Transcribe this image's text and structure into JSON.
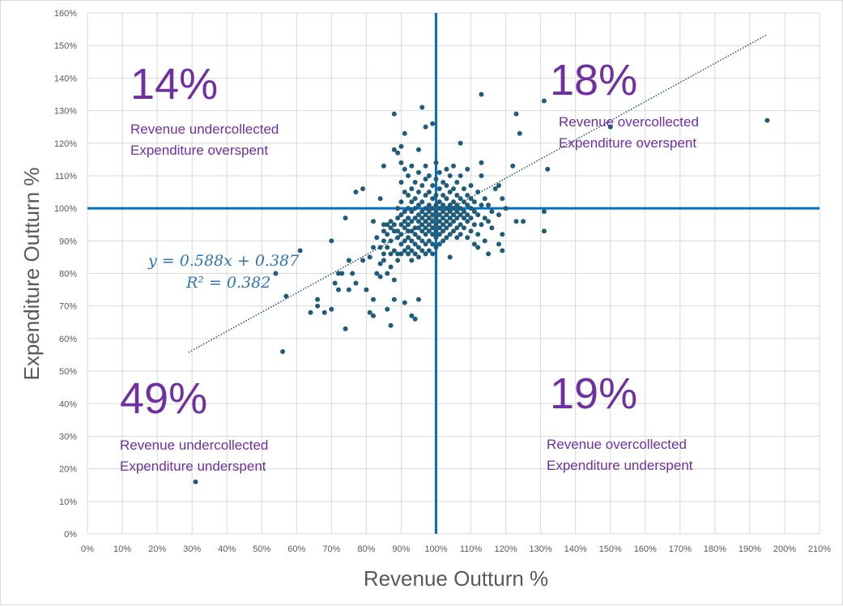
{
  "chart_data": {
    "type": "scatter",
    "xlabel": "Revenue Outturn %",
    "ylabel": "Expenditure Outturn %",
    "xlim": [
      0,
      210
    ],
    "ylim": [
      0,
      160
    ],
    "x_ticks": [
      "0%",
      "10%",
      "20%",
      "30%",
      "40%",
      "50%",
      "60%",
      "70%",
      "80%",
      "90%",
      "100%",
      "110%",
      "120%",
      "130%",
      "140%",
      "150%",
      "160%",
      "170%",
      "180%",
      "190%",
      "200%",
      "210%"
    ],
    "y_ticks": [
      "0%",
      "10%",
      "20%",
      "30%",
      "40%",
      "50%",
      "60%",
      "70%",
      "80%",
      "90%",
      "100%",
      "110%",
      "120%",
      "130%",
      "140%",
      "150%",
      "160%"
    ],
    "grid": true,
    "reference_lines": {
      "x": 100,
      "y": 100,
      "color": "#0070c0"
    },
    "trendline": {
      "slope": 0.588,
      "intercept": 0.387,
      "x_range": [
        29,
        195
      ],
      "color": "#1f4e79"
    },
    "equation_line1": "y = 0.588x + 0.387",
    "equation_line2": "R² = 0.382",
    "quadrants": [
      {
        "percent": "14%",
        "line1": "Revenue undercollected",
        "line2": "Expenditure overspent"
      },
      {
        "percent": "18%",
        "line1": "Revenue overcollected",
        "line2": "Expenditure overspent"
      },
      {
        "percent": "49%",
        "line1": "Revenue undercollected",
        "line2": "Expenditure underspent"
      },
      {
        "percent": "19%",
        "line1": "Revenue overcollected",
        "line2": "Expenditure underspent"
      }
    ],
    "point_color": "#1f5c7a",
    "points": [
      [
        31,
        16
      ],
      [
        56,
        56
      ],
      [
        57,
        73
      ],
      [
        54,
        80
      ],
      [
        61,
        87
      ],
      [
        64,
        68
      ],
      [
        66,
        70
      ],
      [
        66,
        72
      ],
      [
        68,
        68
      ],
      [
        70,
        69
      ],
      [
        70,
        90
      ],
      [
        71,
        77
      ],
      [
        72,
        80
      ],
      [
        72,
        75
      ],
      [
        73,
        80
      ],
      [
        74,
        63
      ],
      [
        74,
        97
      ],
      [
        75,
        75
      ],
      [
        75,
        84
      ],
      [
        76,
        80
      ],
      [
        77,
        77
      ],
      [
        77,
        105
      ],
      [
        79,
        84
      ],
      [
        79,
        106
      ],
      [
        80,
        75
      ],
      [
        81,
        68
      ],
      [
        81,
        85
      ],
      [
        82,
        67
      ],
      [
        82,
        72
      ],
      [
        82,
        88
      ],
      [
        82,
        96
      ],
      [
        83,
        80
      ],
      [
        83,
        91
      ],
      [
        84,
        79
      ],
      [
        84,
        83
      ],
      [
        84,
        88
      ],
      [
        84,
        103
      ],
      [
        85,
        84
      ],
      [
        85,
        86
      ],
      [
        85,
        90
      ],
      [
        85,
        93
      ],
      [
        85,
        95
      ],
      [
        85,
        113
      ],
      [
        86,
        69
      ],
      [
        86,
        80
      ],
      [
        86,
        88
      ],
      [
        86,
        92
      ],
      [
        86,
        95
      ],
      [
        87,
        64
      ],
      [
        87,
        82
      ],
      [
        87,
        86
      ],
      [
        87,
        90
      ],
      [
        87,
        94
      ],
      [
        87,
        96
      ],
      [
        88,
        72
      ],
      [
        88,
        78
      ],
      [
        88,
        87
      ],
      [
        88,
        93
      ],
      [
        88,
        95
      ],
      [
        88,
        118
      ],
      [
        88,
        129
      ],
      [
        89,
        84
      ],
      [
        89,
        86
      ],
      [
        89,
        91
      ],
      [
        89,
        93
      ],
      [
        89,
        97
      ],
      [
        89,
        100
      ],
      [
        89,
        117
      ],
      [
        90,
        86
      ],
      [
        90,
        89
      ],
      [
        90,
        92
      ],
      [
        90,
        95
      ],
      [
        90,
        98
      ],
      [
        90,
        102
      ],
      [
        90,
        108
      ],
      [
        90,
        114
      ],
      [
        90,
        119
      ],
      [
        91,
        71
      ],
      [
        91,
        87
      ],
      [
        91,
        90
      ],
      [
        91,
        94
      ],
      [
        91,
        96
      ],
      [
        91,
        99
      ],
      [
        91,
        105
      ],
      [
        91,
        112
      ],
      [
        91,
        123
      ],
      [
        92,
        86
      ],
      [
        92,
        88
      ],
      [
        92,
        91
      ],
      [
        92,
        93
      ],
      [
        92,
        95
      ],
      [
        92,
        97
      ],
      [
        92,
        100
      ],
      [
        92,
        104
      ],
      [
        92,
        110
      ],
      [
        93,
        67
      ],
      [
        93,
        84
      ],
      [
        93,
        87
      ],
      [
        93,
        90
      ],
      [
        93,
        93
      ],
      [
        93,
        96
      ],
      [
        93,
        99
      ],
      [
        93,
        102
      ],
      [
        93,
        106
      ],
      [
        93,
        113
      ],
      [
        94,
        66
      ],
      [
        94,
        86
      ],
      [
        94,
        89
      ],
      [
        94,
        92
      ],
      [
        94,
        94
      ],
      [
        94,
        97
      ],
      [
        94,
        100
      ],
      [
        94,
        103
      ],
      [
        94,
        108
      ],
      [
        95,
        72
      ],
      [
        95,
        85
      ],
      [
        95,
        88
      ],
      [
        95,
        91
      ],
      [
        95,
        94
      ],
      [
        95,
        96
      ],
      [
        95,
        98
      ],
      [
        95,
        101
      ],
      [
        95,
        105
      ],
      [
        95,
        111
      ],
      [
        95,
        118
      ],
      [
        96,
        87
      ],
      [
        96,
        90
      ],
      [
        96,
        93
      ],
      [
        96,
        95
      ],
      [
        96,
        97
      ],
      [
        96,
        99
      ],
      [
        96,
        102
      ],
      [
        96,
        107
      ],
      [
        96,
        131
      ],
      [
        97,
        86
      ],
      [
        97,
        89
      ],
      [
        97,
        92
      ],
      [
        97,
        94
      ],
      [
        97,
        96
      ],
      [
        97,
        98
      ],
      [
        97,
        100
      ],
      [
        97,
        104
      ],
      [
        97,
        109
      ],
      [
        97,
        113
      ],
      [
        97,
        125
      ],
      [
        98,
        87
      ],
      [
        98,
        90
      ],
      [
        98,
        93
      ],
      [
        98,
        95
      ],
      [
        98,
        97
      ],
      [
        98,
        99
      ],
      [
        98,
        101
      ],
      [
        98,
        105
      ],
      [
        98,
        110
      ],
      [
        99,
        86
      ],
      [
        99,
        89
      ],
      [
        99,
        92
      ],
      [
        99,
        94
      ],
      [
        99,
        96
      ],
      [
        99,
        98
      ],
      [
        99,
        100
      ],
      [
        99,
        103
      ],
      [
        99,
        107
      ],
      [
        99,
        126
      ],
      [
        100,
        88
      ],
      [
        100,
        91
      ],
      [
        100,
        93
      ],
      [
        100,
        95
      ],
      [
        100,
        97
      ],
      [
        100,
        99
      ],
      [
        100,
        101
      ],
      [
        100,
        104
      ],
      [
        100,
        109
      ],
      [
        100,
        114
      ],
      [
        101,
        89
      ],
      [
        101,
        92
      ],
      [
        101,
        94
      ],
      [
        101,
        96
      ],
      [
        101,
        98
      ],
      [
        101,
        100
      ],
      [
        101,
        102
      ],
      [
        101,
        106
      ],
      [
        101,
        111
      ],
      [
        102,
        90
      ],
      [
        102,
        93
      ],
      [
        102,
        95
      ],
      [
        102,
        97
      ],
      [
        102,
        99
      ],
      [
        102,
        101
      ],
      [
        102,
        104
      ],
      [
        102,
        108
      ],
      [
        103,
        91
      ],
      [
        103,
        94
      ],
      [
        103,
        96
      ],
      [
        103,
        98
      ],
      [
        103,
        100
      ],
      [
        103,
        103
      ],
      [
        103,
        107
      ],
      [
        103,
        112
      ],
      [
        104,
        85
      ],
      [
        104,
        92
      ],
      [
        104,
        95
      ],
      [
        104,
        97
      ],
      [
        104,
        99
      ],
      [
        104,
        101
      ],
      [
        104,
        105
      ],
      [
        104,
        110
      ],
      [
        105,
        93
      ],
      [
        105,
        96
      ],
      [
        105,
        98
      ],
      [
        105,
        100
      ],
      [
        105,
        102
      ],
      [
        105,
        106
      ],
      [
        105,
        113
      ],
      [
        106,
        91
      ],
      [
        106,
        94
      ],
      [
        106,
        97
      ],
      [
        106,
        99
      ],
      [
        106,
        101
      ],
      [
        106,
        104
      ],
      [
        106,
        108
      ],
      [
        107,
        92
      ],
      [
        107,
        95
      ],
      [
        107,
        98
      ],
      [
        107,
        100
      ],
      [
        107,
        103
      ],
      [
        107,
        110
      ],
      [
        107,
        120
      ],
      [
        108,
        94
      ],
      [
        108,
        97
      ],
      [
        108,
        99
      ],
      [
        108,
        102
      ],
      [
        108,
        106
      ],
      [
        109,
        91
      ],
      [
        109,
        96
      ],
      [
        109,
        98
      ],
      [
        109,
        101
      ],
      [
        109,
        104
      ],
      [
        109,
        112
      ],
      [
        110,
        93
      ],
      [
        110,
        97
      ],
      [
        110,
        100
      ],
      [
        110,
        103
      ],
      [
        110,
        107
      ],
      [
        111,
        89
      ],
      [
        111,
        95
      ],
      [
        111,
        99
      ],
      [
        111,
        102
      ],
      [
        112,
        88
      ],
      [
        112,
        92
      ],
      [
        112,
        98
      ],
      [
        112,
        105
      ],
      [
        113,
        95
      ],
      [
        113,
        101
      ],
      [
        113,
        110
      ],
      [
        113,
        114
      ],
      [
        113,
        135
      ],
      [
        114,
        90
      ],
      [
        114,
        97
      ],
      [
        114,
        103
      ],
      [
        115,
        86
      ],
      [
        115,
        96
      ],
      [
        115,
        101
      ],
      [
        116,
        94
      ],
      [
        116,
        99
      ],
      [
        117,
        106
      ],
      [
        118,
        89
      ],
      [
        118,
        98
      ],
      [
        118,
        107
      ],
      [
        119,
        87
      ],
      [
        119,
        92
      ],
      [
        119,
        103
      ],
      [
        120,
        100
      ],
      [
        122,
        113
      ],
      [
        123,
        96
      ],
      [
        123,
        129
      ],
      [
        124,
        123
      ],
      [
        125,
        96
      ],
      [
        131,
        93
      ],
      [
        131,
        99
      ],
      [
        131,
        133
      ],
      [
        132,
        112
      ],
      [
        150,
        125
      ],
      [
        195,
        127
      ]
    ]
  }
}
